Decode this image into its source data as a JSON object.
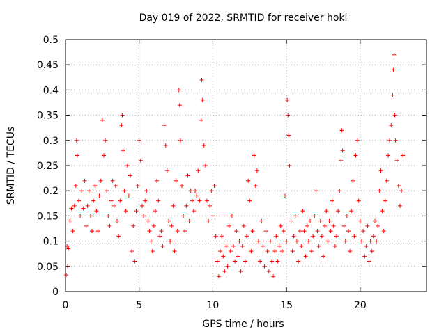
{
  "chart_data": {
    "type": "scatter",
    "title": "Day 019 of 2022, SRMTID for receiver hoki",
    "xlabel": "GPS time / hours",
    "ylabel": "SRMTID / TECUs",
    "xlim": [
      0,
      24.5
    ],
    "ylim": [
      0,
      0.5
    ],
    "x_ticks": [
      0,
      5,
      10,
      15,
      20
    ],
    "x_tick_labels": [
      "0",
      "5",
      "10",
      "15",
      "20"
    ],
    "y_ticks": [
      0,
      0.05,
      0.1,
      0.15,
      0.2,
      0.25,
      0.3,
      0.35,
      0.4,
      0.45,
      0.5
    ],
    "y_tick_labels": [
      "0",
      "0.05",
      "0.1",
      "0.15",
      "0.2",
      "0.25",
      "0.3",
      "0.35",
      "0.4",
      "0.45",
      "0.5"
    ],
    "grid": true,
    "marker": "+",
    "marker_color": "#ff0000",
    "series": [
      {
        "name": "SRMTID",
        "points": [
          [
            0.05,
            0.033
          ],
          [
            0.1,
            0.09
          ],
          [
            0.15,
            0.05
          ],
          [
            0.2,
            0.085
          ],
          [
            0.3,
            0.14
          ],
          [
            0.4,
            0.165
          ],
          [
            0.5,
            0.12
          ],
          [
            0.6,
            0.17
          ],
          [
            0.7,
            0.21
          ],
          [
            0.75,
            0.3
          ],
          [
            0.8,
            0.27
          ],
          [
            0.9,
            0.18
          ],
          [
            1.0,
            0.15
          ],
          [
            1.1,
            0.2
          ],
          [
            1.2,
            0.165
          ],
          [
            1.3,
            0.22
          ],
          [
            1.4,
            0.13
          ],
          [
            1.5,
            0.17
          ],
          [
            1.6,
            0.2
          ],
          [
            1.7,
            0.15
          ],
          [
            1.8,
            0.12
          ],
          [
            1.9,
            0.18
          ],
          [
            2.0,
            0.21
          ],
          [
            2.1,
            0.16
          ],
          [
            2.2,
            0.12
          ],
          [
            2.3,
            0.19
          ],
          [
            2.4,
            0.22
          ],
          [
            2.5,
            0.34
          ],
          [
            2.6,
            0.27
          ],
          [
            2.7,
            0.3
          ],
          [
            2.8,
            0.2
          ],
          [
            2.9,
            0.15
          ],
          [
            3.0,
            0.13
          ],
          [
            3.1,
            0.18
          ],
          [
            3.2,
            0.22
          ],
          [
            3.3,
            0.17
          ],
          [
            3.4,
            0.21
          ],
          [
            3.5,
            0.14
          ],
          [
            3.6,
            0.11
          ],
          [
            3.7,
            0.18
          ],
          [
            3.8,
            0.33
          ],
          [
            3.85,
            0.35
          ],
          [
            3.9,
            0.28
          ],
          [
            4.0,
            0.2
          ],
          [
            4.1,
            0.16
          ],
          [
            4.2,
            0.25
          ],
          [
            4.3,
            0.19
          ],
          [
            4.4,
            0.23
          ],
          [
            4.5,
            0.08
          ],
          [
            4.6,
            0.13
          ],
          [
            4.7,
            0.06
          ],
          [
            4.8,
            0.16
          ],
          [
            4.9,
            0.21
          ],
          [
            5.0,
            0.3
          ],
          [
            5.1,
            0.26
          ],
          [
            5.2,
            0.17
          ],
          [
            5.3,
            0.15
          ],
          [
            5.4,
            0.18
          ],
          [
            5.5,
            0.2
          ],
          [
            5.6,
            0.14
          ],
          [
            5.7,
            0.12
          ],
          [
            5.8,
            0.1
          ],
          [
            5.9,
            0.08
          ],
          [
            6.0,
            0.13
          ],
          [
            6.1,
            0.16
          ],
          [
            6.2,
            0.22
          ],
          [
            6.3,
            0.18
          ],
          [
            6.4,
            0.11
          ],
          [
            6.5,
            0.12
          ],
          [
            6.6,
            0.09
          ],
          [
            6.7,
            0.33
          ],
          [
            6.8,
            0.29
          ],
          [
            6.9,
            0.24
          ],
          [
            7.0,
            0.14
          ],
          [
            7.1,
            0.1
          ],
          [
            7.2,
            0.13
          ],
          [
            7.3,
            0.17
          ],
          [
            7.4,
            0.08
          ],
          [
            7.5,
            0.22
          ],
          [
            7.6,
            0.12
          ],
          [
            7.7,
            0.4
          ],
          [
            7.75,
            0.37
          ],
          [
            7.8,
            0.3
          ],
          [
            7.9,
            0.21
          ],
          [
            8.0,
            0.15
          ],
          [
            8.1,
            0.12
          ],
          [
            8.2,
            0.17
          ],
          [
            8.3,
            0.23
          ],
          [
            8.4,
            0.14
          ],
          [
            8.5,
            0.2
          ],
          [
            8.6,
            0.18
          ],
          [
            8.7,
            0.16
          ],
          [
            8.8,
            0.2
          ],
          [
            8.9,
            0.19
          ],
          [
            9.0,
            0.24
          ],
          [
            9.1,
            0.18
          ],
          [
            9.2,
            0.34
          ],
          [
            9.25,
            0.42
          ],
          [
            9.3,
            0.38
          ],
          [
            9.4,
            0.29
          ],
          [
            9.5,
            0.25
          ],
          [
            9.6,
            0.18
          ],
          [
            9.7,
            0.14
          ],
          [
            9.8,
            0.17
          ],
          [
            9.9,
            0.2
          ],
          [
            10.0,
            0.15
          ],
          [
            10.1,
            0.21
          ],
          [
            10.2,
            0.11
          ],
          [
            10.3,
            0.06
          ],
          [
            10.4,
            0.03
          ],
          [
            10.5,
            0.08
          ],
          [
            10.6,
            0.11
          ],
          [
            10.7,
            0.07
          ],
          [
            10.8,
            0.04
          ],
          [
            10.9,
            0.09
          ],
          [
            11.0,
            0.05
          ],
          [
            11.1,
            0.13
          ],
          [
            11.2,
            0.08
          ],
          [
            11.3,
            0.15
          ],
          [
            11.4,
            0.09
          ],
          [
            11.5,
            0.06
          ],
          [
            11.6,
            0.12
          ],
          [
            11.7,
            0.07
          ],
          [
            11.8,
            0.1
          ],
          [
            11.9,
            0.04
          ],
          [
            12.0,
            0.09
          ],
          [
            12.1,
            0.13
          ],
          [
            12.2,
            0.06
          ],
          [
            12.3,
            0.11
          ],
          [
            12.4,
            0.22
          ],
          [
            12.5,
            0.18
          ],
          [
            12.6,
            0.08
          ],
          [
            12.7,
            0.12
          ],
          [
            12.8,
            0.27
          ],
          [
            12.9,
            0.21
          ],
          [
            13.0,
            0.24
          ],
          [
            13.1,
            0.1
          ],
          [
            13.2,
            0.06
          ],
          [
            13.3,
            0.14
          ],
          [
            13.4,
            0.09
          ],
          [
            13.5,
            0.05
          ],
          [
            13.6,
            0.12
          ],
          [
            13.7,
            0.08
          ],
          [
            13.8,
            0.04
          ],
          [
            13.9,
            0.1
          ],
          [
            14.0,
            0.06
          ],
          [
            14.1,
            0.03
          ],
          [
            14.2,
            0.08
          ],
          [
            14.3,
            0.11
          ],
          [
            14.4,
            0.06
          ],
          [
            14.5,
            0.09
          ],
          [
            14.6,
            0.13
          ],
          [
            14.7,
            0.08
          ],
          [
            14.8,
            0.12
          ],
          [
            14.9,
            0.19
          ],
          [
            15.0,
            0.1
          ],
          [
            15.05,
            0.38
          ],
          [
            15.1,
            0.35
          ],
          [
            15.15,
            0.31
          ],
          [
            15.2,
            0.25
          ],
          [
            15.3,
            0.14
          ],
          [
            15.4,
            0.08
          ],
          [
            15.5,
            0.11
          ],
          [
            15.6,
            0.15
          ],
          [
            15.7,
            0.1
          ],
          [
            15.8,
            0.06
          ],
          [
            15.9,
            0.12
          ],
          [
            16.0,
            0.09
          ],
          [
            16.1,
            0.16
          ],
          [
            16.2,
            0.12
          ],
          [
            16.3,
            0.07
          ],
          [
            16.4,
            0.13
          ],
          [
            16.5,
            0.1
          ],
          [
            16.6,
            0.14
          ],
          [
            16.7,
            0.08
          ],
          [
            16.8,
            0.11
          ],
          [
            16.9,
            0.15
          ],
          [
            17.0,
            0.2
          ],
          [
            17.1,
            0.12
          ],
          [
            17.2,
            0.09
          ],
          [
            17.3,
            0.14
          ],
          [
            17.4,
            0.11
          ],
          [
            17.5,
            0.07
          ],
          [
            17.6,
            0.13
          ],
          [
            17.7,
            0.16
          ],
          [
            17.8,
            0.1
          ],
          [
            17.9,
            0.14
          ],
          [
            18.0,
            0.12
          ],
          [
            18.1,
            0.18
          ],
          [
            18.2,
            0.13
          ],
          [
            18.3,
            0.09
          ],
          [
            18.4,
            0.11
          ],
          [
            18.5,
            0.16
          ],
          [
            18.6,
            0.2
          ],
          [
            18.7,
            0.26
          ],
          [
            18.75,
            0.32
          ],
          [
            18.8,
            0.28
          ],
          [
            18.9,
            0.13
          ],
          [
            19.0,
            0.1
          ],
          [
            19.1,
            0.15
          ],
          [
            19.2,
            0.12
          ],
          [
            19.3,
            0.08
          ],
          [
            19.4,
            0.16
          ],
          [
            19.5,
            0.22
          ],
          [
            19.6,
            0.11
          ],
          [
            19.7,
            0.27
          ],
          [
            19.8,
            0.3
          ],
          [
            19.9,
            0.18
          ],
          [
            20.0,
            0.14
          ],
          [
            20.1,
            0.1
          ],
          [
            20.2,
            0.12
          ],
          [
            20.3,
            0.07
          ],
          [
            20.4,
            0.09
          ],
          [
            20.5,
            0.13
          ],
          [
            20.6,
            0.06
          ],
          [
            20.7,
            0.1
          ],
          [
            20.8,
            0.08
          ],
          [
            20.9,
            0.11
          ],
          [
            21.0,
            0.14
          ],
          [
            21.1,
            0.1
          ],
          [
            21.2,
            0.13
          ],
          [
            21.3,
            0.2
          ],
          [
            21.4,
            0.24
          ],
          [
            21.5,
            0.16
          ],
          [
            21.6,
            0.12
          ],
          [
            21.7,
            0.18
          ],
          [
            21.8,
            0.22
          ],
          [
            21.9,
            0.27
          ],
          [
            22.0,
            0.3
          ],
          [
            22.1,
            0.33
          ],
          [
            22.2,
            0.39
          ],
          [
            22.25,
            0.44
          ],
          [
            22.3,
            0.47
          ],
          [
            22.35,
            0.35
          ],
          [
            22.4,
            0.3
          ],
          [
            22.5,
            0.26
          ],
          [
            22.6,
            0.21
          ],
          [
            22.7,
            0.17
          ],
          [
            22.8,
            0.2
          ],
          [
            22.9,
            0.27
          ]
        ]
      }
    ]
  }
}
